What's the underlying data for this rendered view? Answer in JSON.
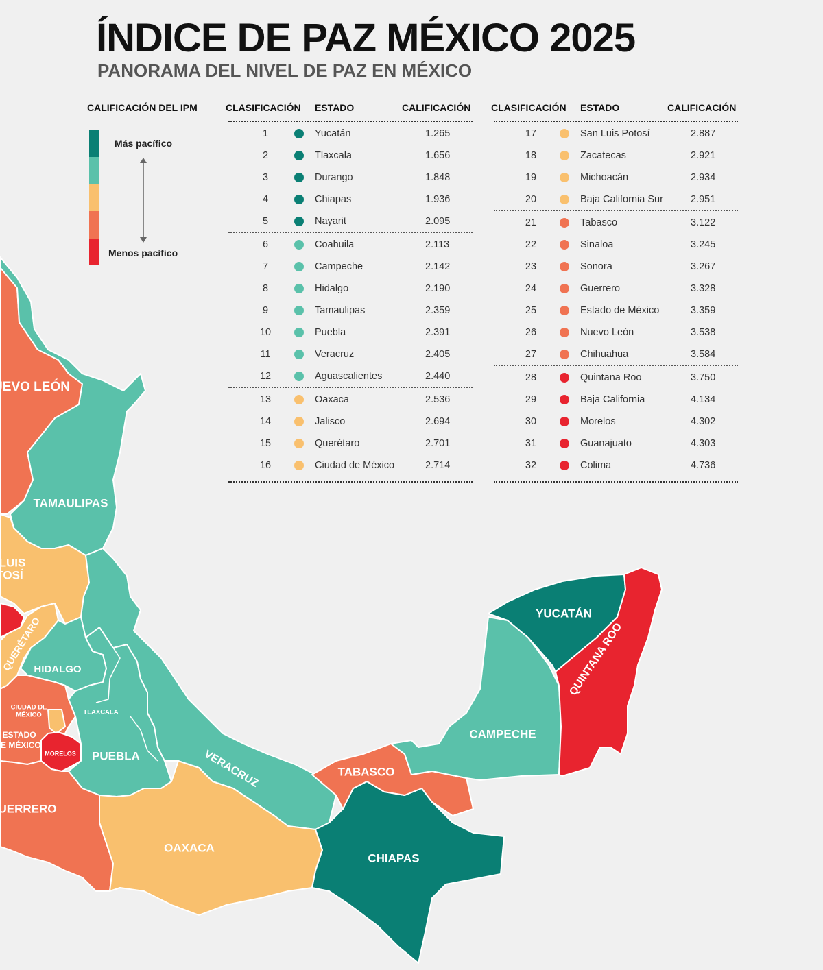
{
  "title": "ÍNDICE DE PAZ MÉXICO 2025",
  "subtitle": "PANORAMA DEL NIVEL DE PAZ EN MÉXICO",
  "legend": {
    "title": "CALIFICACIÓN DEL IPM",
    "most_peaceful": "Más pacífico",
    "least_peaceful": "Menos pacífico",
    "colors": [
      "#0a7f74",
      "#5ac1aa",
      "#f9c06e",
      "#f07352",
      "#e8242f"
    ]
  },
  "table_headers": {
    "rank": "CLASIFICACIÓN",
    "state": "ESTADO",
    "score": "CALIFICACIÓN"
  },
  "tier_colors": {
    "t1": "#0a7f74",
    "t2": "#5ac1aa",
    "t3": "#f9c06e",
    "t4": "#f07352",
    "t5": "#e8242f"
  },
  "rankings": [
    {
      "rank": "1",
      "state": "Yucatán",
      "score": "1.265",
      "tier": "t1"
    },
    {
      "rank": "2",
      "state": "Tlaxcala",
      "score": "1.656",
      "tier": "t1"
    },
    {
      "rank": "3",
      "state": "Durango",
      "score": "1.848",
      "tier": "t1"
    },
    {
      "rank": "4",
      "state": "Chiapas",
      "score": "1.936",
      "tier": "t1"
    },
    {
      "rank": "5",
      "state": "Nayarit",
      "score": "2.095",
      "tier": "t1"
    },
    {
      "rank": "6",
      "state": "Coahuila",
      "score": "2.113",
      "tier": "t2"
    },
    {
      "rank": "7",
      "state": "Campeche",
      "score": "2.142",
      "tier": "t2"
    },
    {
      "rank": "8",
      "state": "Hidalgo",
      "score": "2.190",
      "tier": "t2"
    },
    {
      "rank": "9",
      "state": "Tamaulipas",
      "score": "2.359",
      "tier": "t2"
    },
    {
      "rank": "10",
      "state": "Puebla",
      "score": "2.391",
      "tier": "t2"
    },
    {
      "rank": "11",
      "state": "Veracruz",
      "score": "2.405",
      "tier": "t2"
    },
    {
      "rank": "12",
      "state": "Aguascalientes",
      "score": "2.440",
      "tier": "t2"
    },
    {
      "rank": "13",
      "state": "Oaxaca",
      "score": "2.536",
      "tier": "t3"
    },
    {
      "rank": "14",
      "state": "Jalisco",
      "score": "2.694",
      "tier": "t3"
    },
    {
      "rank": "15",
      "state": "Querétaro",
      "score": "2.701",
      "tier": "t3"
    },
    {
      "rank": "16",
      "state": "Ciudad de México",
      "score": "2.714",
      "tier": "t3"
    },
    {
      "rank": "17",
      "state": "San Luis Potosí",
      "score": "2.887",
      "tier": "t3"
    },
    {
      "rank": "18",
      "state": "Zacatecas",
      "score": "2.921",
      "tier": "t3"
    },
    {
      "rank": "19",
      "state": "Michoacán",
      "score": "2.934",
      "tier": "t3"
    },
    {
      "rank": "20",
      "state": "Baja California Sur",
      "score": "2.951",
      "tier": "t3"
    },
    {
      "rank": "21",
      "state": "Tabasco",
      "score": "3.122",
      "tier": "t4"
    },
    {
      "rank": "22",
      "state": "Sinaloa",
      "score": "3.245",
      "tier": "t4"
    },
    {
      "rank": "23",
      "state": "Sonora",
      "score": "3.267",
      "tier": "t4"
    },
    {
      "rank": "24",
      "state": "Guerrero",
      "score": "3.328",
      "tier": "t4"
    },
    {
      "rank": "25",
      "state": "Estado de México",
      "score": "3.359",
      "tier": "t4"
    },
    {
      "rank": "26",
      "state": "Nuevo León",
      "score": "3.538",
      "tier": "t4"
    },
    {
      "rank": "27",
      "state": "Chihuahua",
      "score": "3.584",
      "tier": "t4"
    },
    {
      "rank": "28",
      "state": "Quintana Roo",
      "score": "3.750",
      "tier": "t5"
    },
    {
      "rank": "29",
      "state": "Baja California",
      "score": "4.134",
      "tier": "t5"
    },
    {
      "rank": "30",
      "state": "Morelos",
      "score": "4.302",
      "tier": "t5"
    },
    {
      "rank": "31",
      "state": "Guanajuato",
      "score": "4.303",
      "tier": "t5"
    },
    {
      "rank": "32",
      "state": "Colima",
      "score": "4.736",
      "tier": "t5"
    }
  ],
  "map_labels": {
    "nuevo_leon": "UEVO LEÓN",
    "tamaulipas": "TAMAULIPAS",
    "san_luis_potosi_1": "LUIS",
    "san_luis_potosi_2": "TOSÍ",
    "queretaro": "QUERÉTARO",
    "hidalgo": "HIDALGO",
    "cdmx_1": "CIUDAD DE",
    "cdmx_2": "MÉXICO",
    "tlaxcala": "TLAXCALA",
    "edomex_1": "ESTADO",
    "edomex_2": "DE MÉXICO",
    "morelos": "MORELOS",
    "puebla": "PUEBLA",
    "veracruz": "VERACRUZ",
    "guerrero": "UERRERO",
    "oaxaca": "OAXACA",
    "tabasco": "TABASCO",
    "chiapas": "CHIAPAS",
    "campeche": "CAMPECHE",
    "yucatan": "YUCATÁN",
    "quintana_roo": "QUINTANA ROO"
  }
}
